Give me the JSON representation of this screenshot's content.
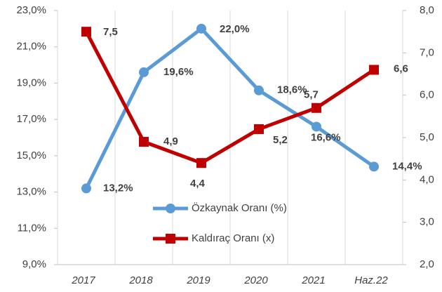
{
  "chart_data": {
    "type": "line",
    "categories": [
      "2017",
      "2018",
      "2019",
      "2020",
      "2021",
      "Haz.22"
    ],
    "series": [
      {
        "name": "Özkaynak Oranı (%)",
        "color": "#5b9bd5",
        "marker": "circle",
        "axis": "y",
        "values": [
          13.2,
          19.6,
          22.0,
          18.6,
          16.6,
          14.4
        ],
        "value_labels": [
          "13,2%",
          "19,6%",
          "22,0%",
          "18,6%",
          "16,6%",
          "14,4%"
        ]
      },
      {
        "name": "Kaldıraç Oranı (x)",
        "color": "#c00000",
        "marker": "square",
        "axis": "y2",
        "values": [
          7.5,
          4.9,
          4.4,
          5.2,
          5.7,
          6.6
        ],
        "value_labels": [
          "7,5",
          "4,9",
          "4,4",
          "5,2",
          "5,7",
          "6,6"
        ]
      }
    ],
    "ylim": [
      9,
      23
    ],
    "yticks": [
      {
        "value": 9,
        "label": "9,0%"
      },
      {
        "value": 11,
        "label": "11,0%"
      },
      {
        "value": 13,
        "label": "13,0%"
      },
      {
        "value": 15,
        "label": "15,0%"
      },
      {
        "value": 17,
        "label": "17,0%"
      },
      {
        "value": 19,
        "label": "19,0%"
      },
      {
        "value": 21,
        "label": "21,0%"
      },
      {
        "value": 23,
        "label": "23,0%"
      }
    ],
    "y2lim": [
      2,
      8
    ],
    "y2ticks": [
      {
        "value": 2,
        "label": "2,0"
      },
      {
        "value": 3,
        "label": "3,0"
      },
      {
        "value": 4,
        "label": "4,0"
      },
      {
        "value": 5,
        "label": "5,0"
      },
      {
        "value": 6,
        "label": "6,0"
      },
      {
        "value": 7,
        "label": "7,0"
      },
      {
        "value": 8,
        "label": "8,0"
      }
    ]
  }
}
